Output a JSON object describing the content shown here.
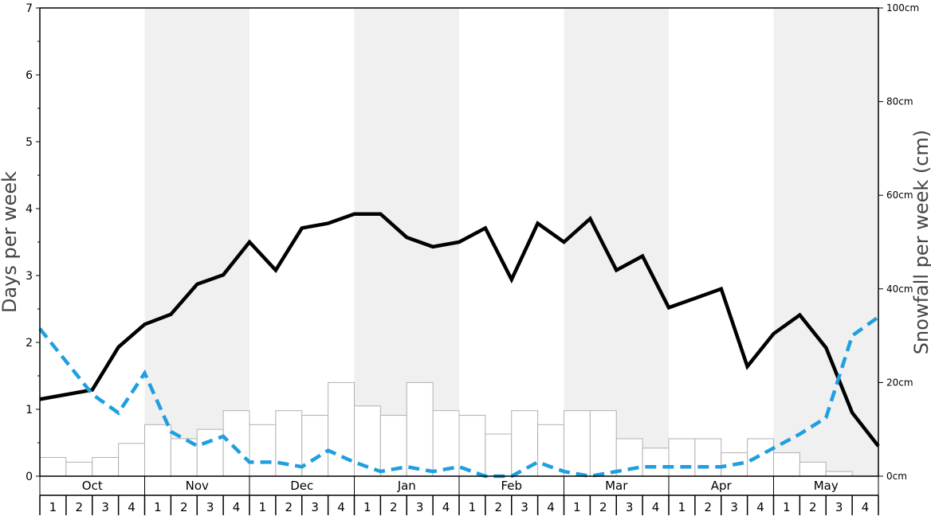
{
  "chart_data": {
    "type": "bar",
    "months": [
      "Oct",
      "Nov",
      "Dec",
      "Jan",
      "Feb",
      "Mar",
      "Apr",
      "May"
    ],
    "week_labels": [
      "1",
      "2",
      "3",
      "4"
    ],
    "ylabel_left": "Days per week",
    "ylabel_right": "Snowfall per week (cm)",
    "ylim_left": [
      0,
      7
    ],
    "ylim_right": [
      0,
      100
    ],
    "left_ticks": [
      "0",
      "1",
      "2",
      "3",
      "4",
      "5",
      "6",
      "7"
    ],
    "right_ticks": [
      "0cm",
      "20cm",
      "40cm",
      "60cm",
      "80cm",
      "100cm"
    ],
    "series": [
      {
        "kind": "bar",
        "axis": "left",
        "color": "#ffffff",
        "edge_color": "#b0b0b0",
        "values": [
          0.28,
          0.21,
          0.28,
          0.49,
          0.77,
          0.56,
          0.7,
          0.98,
          0.77,
          0.98,
          0.91,
          1.4,
          1.05,
          0.91,
          1.4,
          0.98,
          0.91,
          0.63,
          0.98,
          0.77,
          0.98,
          0.98,
          0.56,
          0.42,
          0.56,
          0.56,
          0.35,
          0.56,
          0.35,
          0.21,
          0.07,
          0.0
        ]
      },
      {
        "kind": "line",
        "axis": "left",
        "color": "#000000",
        "style": "solid",
        "values": [
          1.15,
          1.22,
          1.29,
          1.93,
          2.27,
          2.42,
          2.87,
          3.01,
          3.5,
          3.08,
          3.71,
          3.78,
          3.92,
          3.92,
          3.57,
          3.43,
          3.5,
          3.71,
          2.94,
          3.78,
          3.5,
          3.85,
          3.08,
          3.29,
          2.52,
          2.66,
          2.8,
          1.64,
          2.13,
          2.41,
          1.92,
          0.95,
          0.45
        ]
      },
      {
        "kind": "line",
        "axis": "right",
        "color": "#1e9fe0",
        "style": "dashed",
        "values": [
          31.5,
          24.5,
          17.5,
          13.5,
          22.0,
          9.5,
          6.5,
          8.5,
          3.0,
          3.0,
          2.0,
          5.5,
          3.0,
          1.0,
          2.0,
          1.0,
          2.0,
          0.0,
          0.0,
          3.0,
          1.0,
          0.0,
          1.0,
          2.0,
          2.0,
          2.0,
          2.0,
          3.0,
          6.0,
          9.0,
          12.5,
          30.0,
          34.0
        ]
      }
    ],
    "colors": {
      "band_shaded": "#f0f0f0",
      "band_plain": "#ffffff",
      "frame": "#000000"
    }
  }
}
